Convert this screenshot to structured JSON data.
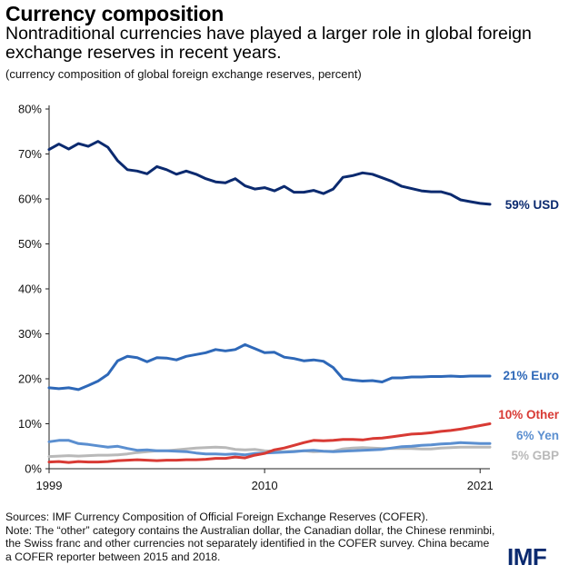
{
  "title": "Currency composition",
  "subtitle": "Nontraditional currencies have played a larger role in global foreign exchange reserves in recent years.",
  "units": "(currency composition of global foreign exchange reserves, percent)",
  "sources": "Sources: IMF Currency Composition of Official Foreign Exchange Reserves (COFER).",
  "note": "Note: The “other” category contains the Australian dollar, the Canadian dollar, the Chinese renminbi, the Swiss franc and other currencies not separately identified in the COFER survey. China became a COFER reporter between 2015 and 2018.",
  "logo": "IMF",
  "colors": {
    "usd": "#0b2a6f",
    "euro": "#2e68b8",
    "other": "#d83a34",
    "yen": "#5b8fd0",
    "gbp": "#b9b9b9",
    "axis": "#222222"
  },
  "chart_data": {
    "type": "line",
    "x": [
      1999,
      1999.5,
      2000,
      2000.5,
      2001,
      2001.5,
      2002,
      2002.5,
      2003,
      2003.5,
      2004,
      2004.5,
      2005,
      2005.5,
      2006,
      2006.5,
      2007,
      2007.5,
      2008,
      2008.5,
      2009,
      2009.5,
      2010,
      2010.5,
      2011,
      2011.5,
      2012,
      2012.5,
      2013,
      2013.5,
      2014,
      2014.5,
      2015,
      2015.5,
      2016,
      2016.5,
      2017,
      2017.5,
      2018,
      2018.5,
      2019,
      2019.5,
      2020,
      2020.5,
      2021,
      2021.5
    ],
    "series": [
      {
        "name": "USD",
        "label": "59% USD",
        "color_key": "usd",
        "values": [
          71,
          72.2,
          71.1,
          72.3,
          71.7,
          72.8,
          71.5,
          68.5,
          66.5,
          66.2,
          65.6,
          67.2,
          66.5,
          65.5,
          66.2,
          65.5,
          64.5,
          63.8,
          63.6,
          64.5,
          62.9,
          62.2,
          62.5,
          61.8,
          62.8,
          61.5,
          61.5,
          61.9,
          61.2,
          62.2,
          64.8,
          65.2,
          65.8,
          65.5,
          64.7,
          63.9,
          62.8,
          62.3,
          61.8,
          61.6,
          61.6,
          61.0,
          59.8,
          59.4,
          59.0,
          58.8
        ]
      },
      {
        "name": "Euro",
        "label": "21% Euro",
        "color_key": "euro",
        "values": [
          18,
          17.8,
          18,
          17.6,
          18.5,
          19.5,
          21,
          24,
          25,
          24.7,
          23.8,
          24.7,
          24.6,
          24.2,
          25.0,
          25.4,
          25.8,
          26.5,
          26.2,
          26.5,
          27.6,
          26.7,
          25.8,
          25.9,
          24.8,
          24.5,
          24.0,
          24.2,
          23.9,
          22.5,
          20.0,
          19.7,
          19.5,
          19.6,
          19.3,
          20.2,
          20.2,
          20.4,
          20.4,
          20.5,
          20.5,
          20.6,
          20.5,
          20.6,
          20.6,
          20.6
        ]
      },
      {
        "name": "Other",
        "label": "10% Other",
        "color_key": "other",
        "values": [
          1.5,
          1.6,
          1.4,
          1.6,
          1.5,
          1.5,
          1.6,
          1.8,
          1.9,
          2.0,
          1.9,
          1.8,
          1.9,
          1.9,
          2.0,
          2.0,
          2.1,
          2.3,
          2.3,
          2.6,
          2.4,
          3.0,
          3.4,
          4.2,
          4.6,
          5.2,
          5.8,
          6.3,
          6.2,
          6.3,
          6.5,
          6.5,
          6.4,
          6.7,
          6.8,
          7.1,
          7.4,
          7.7,
          7.8,
          8.0,
          8.3,
          8.5,
          8.8,
          9.2,
          9.6,
          10.0
        ]
      },
      {
        "name": "Yen",
        "label": "6% Yen",
        "color_key": "yen",
        "values": [
          6.0,
          6.3,
          6.3,
          5.6,
          5.4,
          5.1,
          4.8,
          5.0,
          4.5,
          4.1,
          4.2,
          4.0,
          4.0,
          3.9,
          3.8,
          3.5,
          3.3,
          3.3,
          3.2,
          3.3,
          3.1,
          3.4,
          3.5,
          3.6,
          3.7,
          3.8,
          4.0,
          4.1,
          3.9,
          3.8,
          3.9,
          4.0,
          4.1,
          4.2,
          4.3,
          4.6,
          4.9,
          5.0,
          5.2,
          5.3,
          5.5,
          5.6,
          5.8,
          5.7,
          5.6,
          5.6
        ]
      },
      {
        "name": "GBP",
        "label": "5% GBP",
        "color_key": "gbp",
        "values": [
          2.7,
          2.8,
          2.9,
          2.8,
          2.9,
          3.0,
          3.0,
          3.1,
          3.3,
          3.6,
          3.8,
          4.0,
          4.0,
          4.2,
          4.4,
          4.6,
          4.7,
          4.8,
          4.7,
          4.3,
          4.2,
          4.3,
          4.0,
          3.9,
          3.8,
          3.9,
          4.0,
          3.8,
          3.9,
          3.9,
          4.4,
          4.6,
          4.7,
          4.6,
          4.5,
          4.5,
          4.5,
          4.5,
          4.4,
          4.4,
          4.6,
          4.7,
          4.8,
          4.8,
          4.8,
          4.8
        ]
      }
    ],
    "yticks": [
      0,
      10,
      20,
      30,
      40,
      50,
      60,
      70,
      80
    ],
    "ytick_labels": [
      "0%",
      "10%",
      "20%",
      "30%",
      "40%",
      "50%",
      "60%",
      "70%",
      "80%"
    ],
    "xticks": [
      1999,
      2010,
      2021
    ],
    "xtick_labels": [
      "1999",
      "2010",
      "2021"
    ],
    "xlim": [
      1999,
      2021.5
    ],
    "ylim": [
      0,
      80
    ],
    "xlabel": "",
    "ylabel": "",
    "legend": "inline-right"
  }
}
